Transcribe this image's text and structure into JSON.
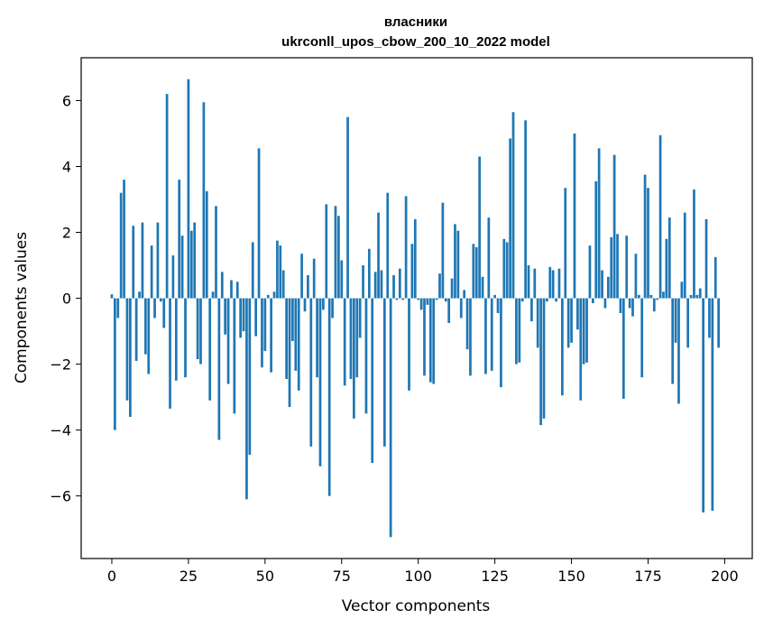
{
  "chart_data": {
    "type": "bar",
    "title_line1": "власники",
    "title_line2": "ukrconll_upos_cbow_200_10_2022 model",
    "xlabel": "Vector components",
    "ylabel": "Components values",
    "xlim": [
      -10,
      209
    ],
    "ylim": [
      -7.9,
      7.3
    ],
    "xticks": [
      0,
      25,
      50,
      75,
      100,
      125,
      150,
      175,
      200
    ],
    "yticks": [
      -6,
      -4,
      -2,
      0,
      2,
      4,
      6
    ],
    "xtick_labels": [
      "0",
      "25",
      "50",
      "75",
      "100",
      "125",
      "150",
      "175",
      "200"
    ],
    "ytick_labels": [
      "−6",
      "−4",
      "−2",
      "0",
      "2",
      "4",
      "6"
    ],
    "bar_color": "#1f77b4",
    "grid": false,
    "values": [
      0.12,
      -4.0,
      -0.6,
      3.2,
      3.6,
      -3.1,
      -3.6,
      2.2,
      -1.9,
      0.2,
      2.3,
      -1.7,
      -2.3,
      1.6,
      -0.6,
      2.3,
      -0.1,
      -0.9,
      6.2,
      -3.35,
      1.3,
      -2.5,
      3.6,
      1.9,
      -2.4,
      6.65,
      2.05,
      2.3,
      -1.85,
      -2.0,
      5.95,
      3.25,
      -3.1,
      0.2,
      2.8,
      -4.3,
      0.8,
      -1.1,
      -2.6,
      0.55,
      -3.5,
      0.5,
      -1.2,
      -1.0,
      -6.1,
      -4.75,
      1.7,
      -1.15,
      4.55,
      -2.1,
      -1.6,
      0.1,
      -2.25,
      0.2,
      1.75,
      1.6,
      0.85,
      -2.45,
      -3.3,
      -1.3,
      -2.2,
      -2.8,
      1.35,
      -0.4,
      0.7,
      -4.5,
      1.2,
      -2.4,
      -5.1,
      -0.35,
      2.85,
      -6.0,
      -0.6,
      2.8,
      2.5,
      1.15,
      -2.65,
      5.5,
      -2.45,
      -3.65,
      -2.4,
      -1.2,
      1.0,
      -3.5,
      1.5,
      -5.0,
      0.8,
      2.6,
      0.85,
      -4.5,
      3.2,
      -7.25,
      0.7,
      -0.05,
      0.9,
      -0.05,
      3.1,
      -2.8,
      1.65,
      2.4,
      -0.05,
      -0.35,
      -2.35,
      -0.2,
      -2.55,
      -2.6,
      -0.05,
      0.75,
      2.9,
      -0.1,
      -0.75,
      0.6,
      2.25,
      2.05,
      -0.6,
      0.25,
      -1.55,
      -2.35,
      1.65,
      1.55,
      4.3,
      0.65,
      -2.3,
      2.45,
      -2.2,
      0.1,
      -0.45,
      -2.7,
      1.8,
      1.7,
      4.85,
      5.65,
      -2.0,
      -1.95,
      -0.1,
      5.4,
      1.0,
      -0.7,
      0.9,
      -1.5,
      -3.85,
      -3.65,
      -0.1,
      0.95,
      0.85,
      -0.1,
      0.9,
      -2.95,
      3.35,
      -1.5,
      -1.35,
      5.0,
      -0.95,
      -3.1,
      -2.0,
      -1.95,
      1.6,
      -0.15,
      3.55,
      4.55,
      0.85,
      -0.3,
      0.65,
      1.85,
      4.35,
      1.95,
      -0.45,
      -3.05,
      1.9,
      -0.3,
      -0.55,
      1.35,
      0.1,
      -2.4,
      3.75,
      3.35,
      0.1,
      -0.4,
      -0.05,
      4.95,
      0.2,
      1.8,
      2.45,
      -2.6,
      -1.35,
      -3.2,
      0.5,
      2.6,
      -1.5,
      0.1,
      3.3,
      0.1,
      0.3,
      -6.5,
      2.4,
      -1.2,
      -6.45,
      1.25,
      -1.5
    ]
  }
}
